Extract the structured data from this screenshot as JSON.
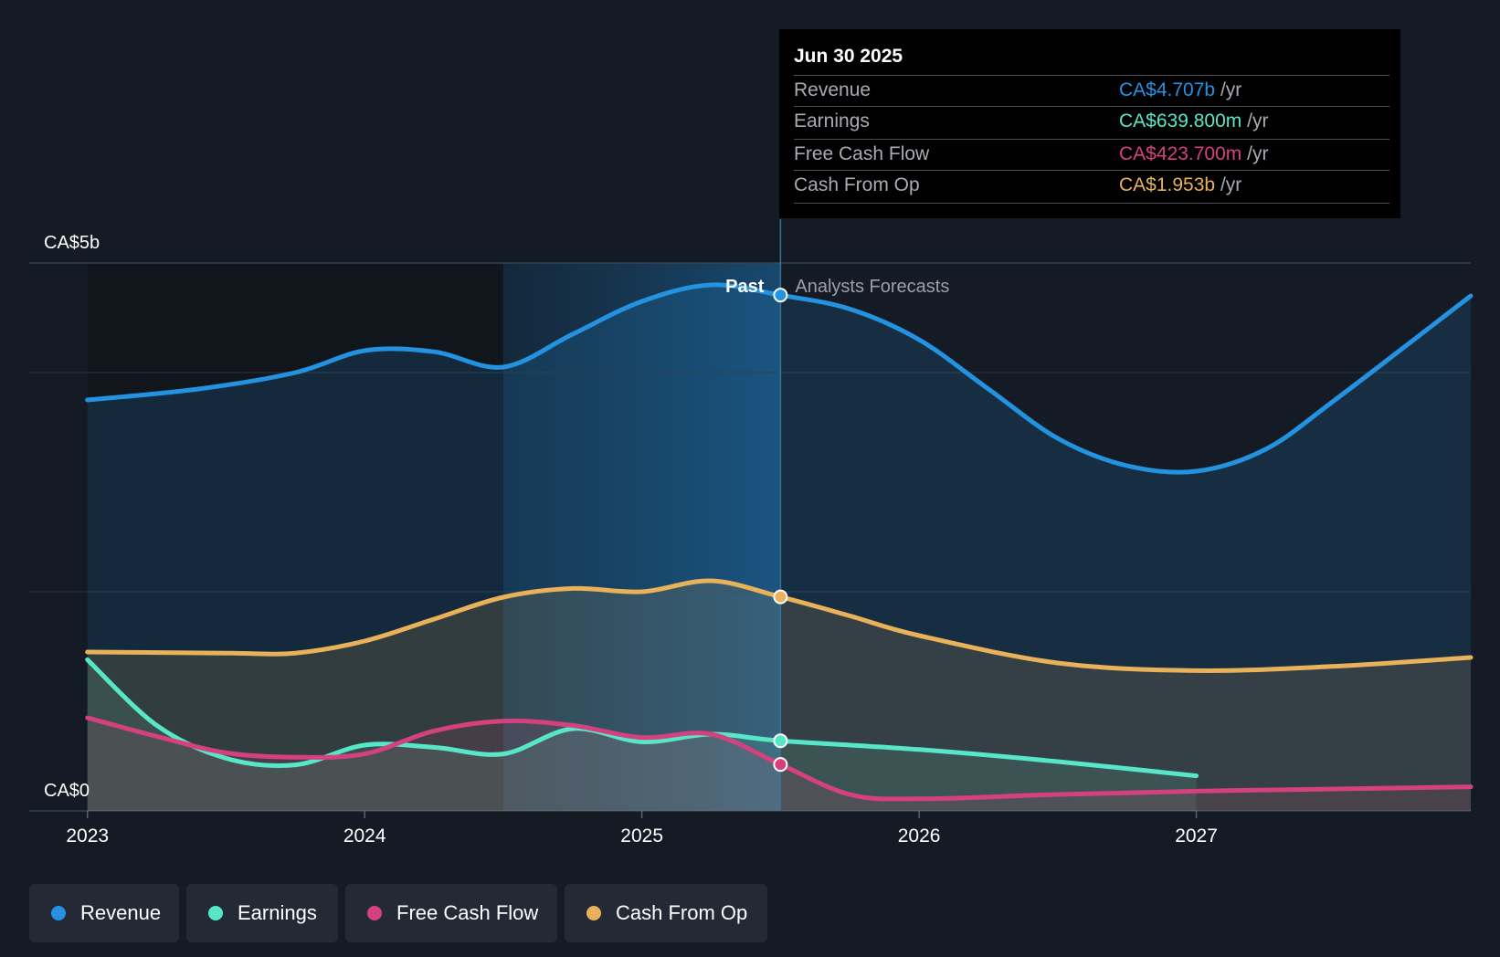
{
  "chart_data": {
    "type": "area",
    "title": "",
    "xlabel": "",
    "ylabel": "",
    "x_ticks": [
      "2023",
      "2024",
      "2025",
      "2026",
      "2027"
    ],
    "y_labels": {
      "top": "CA$5b",
      "bottom": "CA$0"
    },
    "ylim": [
      0,
      5
    ],
    "y_unit": "CA$ billions",
    "divider_label_left": "Past",
    "divider_label_right": "Analysts Forecasts",
    "divider_x": 2025.5,
    "past_shade_start": 2024.5,
    "xlim": [
      2022.79,
      2027.99
    ],
    "series": [
      {
        "name": "Revenue",
        "color": "#2393e1",
        "points": [
          [
            2023.0,
            3.75
          ],
          [
            2023.4,
            3.85
          ],
          [
            2023.75,
            4.0
          ],
          [
            2024.0,
            4.2
          ],
          [
            2024.25,
            4.19
          ],
          [
            2024.5,
            4.05
          ],
          [
            2024.75,
            4.35
          ],
          [
            2025.0,
            4.65
          ],
          [
            2025.25,
            4.8
          ],
          [
            2025.5,
            4.707
          ],
          [
            2025.75,
            4.58
          ],
          [
            2026.0,
            4.3
          ],
          [
            2026.25,
            3.85
          ],
          [
            2026.5,
            3.4
          ],
          [
            2026.75,
            3.15
          ],
          [
            2027.0,
            3.1
          ],
          [
            2027.25,
            3.3
          ],
          [
            2027.5,
            3.75
          ],
          [
            2027.99,
            4.7
          ]
        ]
      },
      {
        "name": "Earnings",
        "color": "#58e6c8",
        "points": [
          [
            2023.0,
            1.38
          ],
          [
            2023.25,
            0.78
          ],
          [
            2023.5,
            0.48
          ],
          [
            2023.75,
            0.42
          ],
          [
            2024.0,
            0.6
          ],
          [
            2024.25,
            0.58
          ],
          [
            2024.5,
            0.52
          ],
          [
            2024.75,
            0.75
          ],
          [
            2025.0,
            0.63
          ],
          [
            2025.25,
            0.7
          ],
          [
            2025.5,
            0.64
          ],
          [
            2026.0,
            0.56
          ],
          [
            2026.5,
            0.45
          ],
          [
            2027.0,
            0.32
          ]
        ]
      },
      {
        "name": "Free Cash Flow",
        "color": "#d5417e",
        "points": [
          [
            2023.0,
            0.85
          ],
          [
            2023.25,
            0.68
          ],
          [
            2023.5,
            0.53
          ],
          [
            2023.75,
            0.49
          ],
          [
            2024.0,
            0.52
          ],
          [
            2024.25,
            0.73
          ],
          [
            2024.5,
            0.82
          ],
          [
            2024.75,
            0.78
          ],
          [
            2025.0,
            0.67
          ],
          [
            2025.25,
            0.7
          ],
          [
            2025.5,
            0.4237
          ],
          [
            2025.75,
            0.15
          ],
          [
            2026.0,
            0.11
          ],
          [
            2026.5,
            0.15
          ],
          [
            2027.0,
            0.18
          ],
          [
            2027.5,
            0.2
          ],
          [
            2027.99,
            0.22
          ]
        ]
      },
      {
        "name": "Cash From Op",
        "color": "#e8b15a",
        "points": [
          [
            2023.0,
            1.45
          ],
          [
            2023.5,
            1.44
          ],
          [
            2023.75,
            1.44
          ],
          [
            2024.0,
            1.55
          ],
          [
            2024.25,
            1.75
          ],
          [
            2024.5,
            1.95
          ],
          [
            2024.75,
            2.03
          ],
          [
            2025.0,
            2.0
          ],
          [
            2025.25,
            2.1
          ],
          [
            2025.5,
            1.953
          ],
          [
            2025.75,
            1.78
          ],
          [
            2026.0,
            1.6
          ],
          [
            2026.5,
            1.35
          ],
          [
            2027.0,
            1.28
          ],
          [
            2027.5,
            1.32
          ],
          [
            2027.99,
            1.4
          ]
        ]
      }
    ],
    "markers_at": 2025.5,
    "gridlines": [
      5,
      4,
      2,
      0
    ],
    "legend": [
      "Revenue",
      "Earnings",
      "Free Cash Flow",
      "Cash From Op"
    ]
  },
  "tooltip": {
    "date": "Jun 30 2025",
    "rows": [
      {
        "label": "Revenue",
        "value": "CA$4.707b",
        "unit": "/yr",
        "color": "#2393e1"
      },
      {
        "label": "Earnings",
        "value": "CA$639.800m",
        "unit": "/yr",
        "color": "#58e6c8"
      },
      {
        "label": "Free Cash Flow",
        "value": "CA$423.700m",
        "unit": "/yr",
        "color": "#d5417e"
      },
      {
        "label": "Cash From Op",
        "value": "CA$1.953b",
        "unit": "/yr",
        "color": "#e8b15a"
      }
    ]
  },
  "legend": [
    {
      "label": "Revenue",
      "color": "#2393e1"
    },
    {
      "label": "Earnings",
      "color": "#58e6c8"
    },
    {
      "label": "Free Cash Flow",
      "color": "#d5417e"
    },
    {
      "label": "Cash From Op",
      "color": "#e8b15a"
    }
  ]
}
